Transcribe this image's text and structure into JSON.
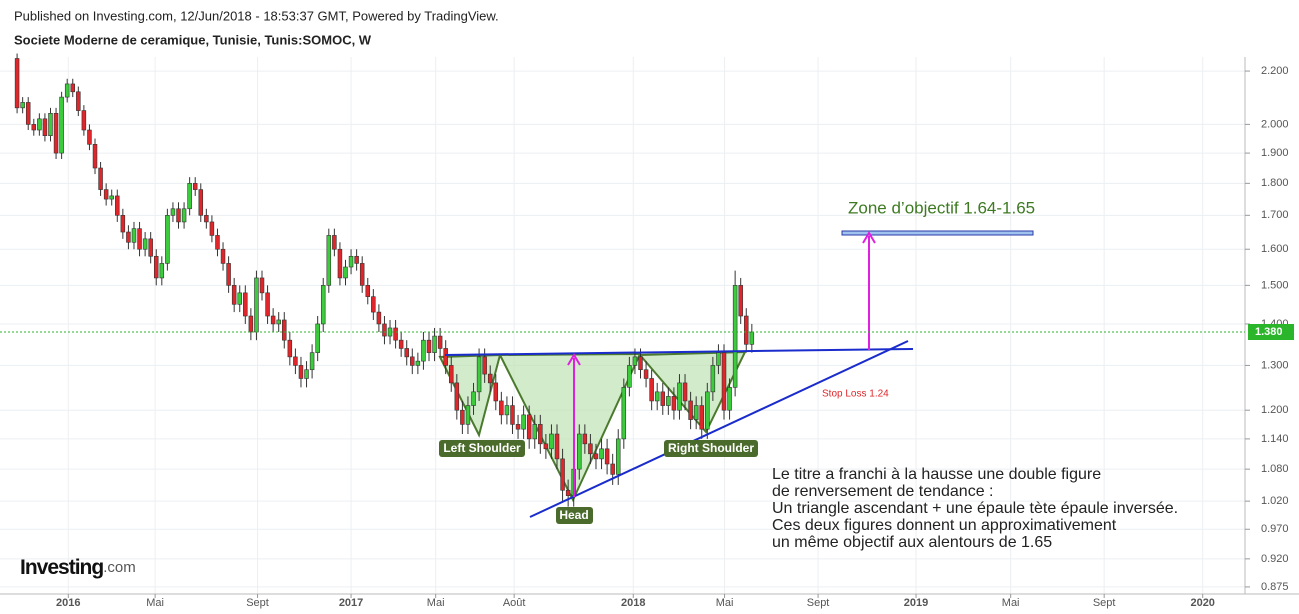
{
  "header": {
    "published": "Published on Investing.com, 12/Jun/2018 - 18:53:37 GMT, Powered by TradingView.",
    "symbol": "Societe Moderne de ceramique, Tunisie, Tunis:SOMOC, W"
  },
  "logo": {
    "name": "Investing",
    "suffix": ".com"
  },
  "chart_data": {
    "type": "candlestick",
    "log_scale": true,
    "grid": true,
    "up_color": "#3ccb3c",
    "down_color": "#e0262a",
    "open": [
      2.25,
      2.06,
      2.08,
      2.0,
      1.98,
      2.02,
      1.96,
      2.04,
      1.9,
      2.1,
      2.15,
      2.12,
      2.05,
      1.98,
      1.93,
      1.85,
      1.78,
      1.75,
      1.76,
      1.7,
      1.65,
      1.62,
      1.66,
      1.6,
      1.63,
      1.58,
      1.52,
      1.56,
      1.7,
      1.72,
      1.68,
      1.72,
      1.8,
      1.78,
      1.7,
      1.68,
      1.64,
      1.6,
      1.56,
      1.5,
      1.45,
      1.48,
      1.42,
      1.38,
      1.52,
      1.48,
      1.42,
      1.4,
      1.41,
      1.36,
      1.32,
      1.3,
      1.27,
      1.29,
      1.33,
      1.4,
      1.5,
      1.64,
      1.6,
      1.52,
      1.55,
      1.58,
      1.56,
      1.5,
      1.47,
      1.43,
      1.4,
      1.37,
      1.39,
      1.36,
      1.34,
      1.32,
      1.3,
      1.31,
      1.36,
      1.33,
      1.37,
      1.34,
      1.3,
      1.26,
      1.2,
      1.17,
      1.21,
      1.24,
      1.32,
      1.28,
      1.26,
      1.22,
      1.19,
      1.21,
      1.17,
      1.16,
      1.19,
      1.14,
      1.17,
      1.13,
      1.12,
      1.15,
      1.1,
      1.04,
      1.03,
      1.08,
      1.15,
      1.13,
      1.11,
      1.1,
      1.12,
      1.09,
      1.07,
      1.14,
      1.25,
      1.3,
      1.32,
      1.29,
      1.27,
      1.22,
      1.24,
      1.21,
      1.23,
      1.2,
      1.26,
      1.22,
      1.18,
      1.21,
      1.16,
      1.24,
      1.3,
      1.33,
      1.2,
      1.25,
      1.5,
      1.42,
      1.35
    ],
    "high": [
      2.27,
      2.1,
      2.1,
      2.02,
      2.04,
      2.04,
      2.06,
      2.06,
      2.12,
      2.17,
      2.17,
      2.14,
      2.07,
      2.0,
      1.95,
      1.87,
      1.8,
      1.78,
      1.78,
      1.72,
      1.67,
      1.68,
      1.68,
      1.65,
      1.65,
      1.6,
      1.58,
      1.72,
      1.74,
      1.74,
      1.74,
      1.82,
      1.82,
      1.8,
      1.72,
      1.7,
      1.66,
      1.62,
      1.58,
      1.52,
      1.5,
      1.5,
      1.44,
      1.54,
      1.54,
      1.5,
      1.44,
      1.43,
      1.43,
      1.38,
      1.34,
      1.32,
      1.31,
      1.35,
      1.42,
      1.52,
      1.66,
      1.66,
      1.62,
      1.57,
      1.6,
      1.6,
      1.58,
      1.52,
      1.49,
      1.45,
      1.42,
      1.41,
      1.41,
      1.38,
      1.36,
      1.34,
      1.33,
      1.38,
      1.38,
      1.39,
      1.39,
      1.36,
      1.32,
      1.28,
      1.22,
      1.23,
      1.26,
      1.34,
      1.34,
      1.3,
      1.28,
      1.24,
      1.23,
      1.23,
      1.19,
      1.21,
      1.21,
      1.19,
      1.19,
      1.15,
      1.17,
      1.17,
      1.12,
      1.06,
      1.1,
      1.17,
      1.17,
      1.15,
      1.13,
      1.14,
      1.14,
      1.11,
      1.16,
      1.27,
      1.32,
      1.34,
      1.34,
      1.31,
      1.29,
      1.26,
      1.26,
      1.25,
      1.25,
      1.28,
      1.28,
      1.24,
      1.23,
      1.23,
      1.26,
      1.32,
      1.35,
      1.35,
      1.27,
      1.54,
      1.52,
      1.44,
      1.4
    ],
    "low": [
      2.04,
      2.04,
      1.98,
      1.96,
      1.96,
      1.94,
      1.94,
      1.88,
      1.88,
      2.08,
      2.1,
      2.03,
      1.96,
      1.91,
      1.83,
      1.76,
      1.73,
      1.73,
      1.68,
      1.63,
      1.6,
      1.6,
      1.58,
      1.58,
      1.56,
      1.5,
      1.5,
      1.54,
      1.68,
      1.66,
      1.66,
      1.7,
      1.76,
      1.68,
      1.66,
      1.62,
      1.58,
      1.54,
      1.48,
      1.43,
      1.43,
      1.4,
      1.36,
      1.36,
      1.46,
      1.4,
      1.38,
      1.38,
      1.34,
      1.3,
      1.28,
      1.25,
      1.25,
      1.27,
      1.31,
      1.38,
      1.48,
      1.58,
      1.5,
      1.5,
      1.53,
      1.54,
      1.48,
      1.45,
      1.41,
      1.38,
      1.35,
      1.35,
      1.34,
      1.32,
      1.3,
      1.28,
      1.28,
      1.29,
      1.31,
      1.31,
      1.32,
      1.28,
      1.24,
      1.18,
      1.15,
      1.15,
      1.19,
      1.22,
      1.26,
      1.24,
      1.2,
      1.17,
      1.17,
      1.15,
      1.14,
      1.14,
      1.12,
      1.12,
      1.11,
      1.1,
      1.1,
      1.08,
      1.02,
      1.01,
      1.01,
      1.06,
      1.11,
      1.09,
      1.08,
      1.08,
      1.07,
      1.05,
      1.05,
      1.12,
      1.23,
      1.28,
      1.27,
      1.25,
      1.2,
      1.2,
      1.19,
      1.19,
      1.18,
      1.18,
      1.2,
      1.16,
      1.16,
      1.14,
      1.14,
      1.22,
      1.28,
      1.18,
      1.18,
      1.23,
      1.4,
      1.33,
      1.33
    ],
    "close": [
      2.06,
      2.08,
      2.0,
      1.98,
      2.02,
      1.96,
      2.04,
      1.9,
      2.1,
      2.15,
      2.12,
      2.05,
      1.98,
      1.93,
      1.85,
      1.78,
      1.75,
      1.76,
      1.7,
      1.65,
      1.62,
      1.66,
      1.6,
      1.63,
      1.58,
      1.52,
      1.56,
      1.7,
      1.72,
      1.68,
      1.72,
      1.8,
      1.78,
      1.7,
      1.68,
      1.64,
      1.6,
      1.56,
      1.5,
      1.45,
      1.48,
      1.42,
      1.38,
      1.52,
      1.48,
      1.42,
      1.4,
      1.41,
      1.36,
      1.32,
      1.3,
      1.27,
      1.29,
      1.33,
      1.4,
      1.5,
      1.64,
      1.6,
      1.52,
      1.55,
      1.58,
      1.56,
      1.5,
      1.47,
      1.43,
      1.4,
      1.37,
      1.39,
      1.36,
      1.34,
      1.32,
      1.3,
      1.31,
      1.36,
      1.33,
      1.37,
      1.34,
      1.3,
      1.26,
      1.2,
      1.17,
      1.21,
      1.24,
      1.32,
      1.28,
      1.26,
      1.22,
      1.19,
      1.21,
      1.17,
      1.16,
      1.19,
      1.14,
      1.17,
      1.13,
      1.12,
      1.15,
      1.1,
      1.04,
      1.03,
      1.08,
      1.15,
      1.13,
      1.11,
      1.1,
      1.12,
      1.09,
      1.07,
      1.14,
      1.25,
      1.3,
      1.32,
      1.29,
      1.27,
      1.22,
      1.24,
      1.21,
      1.23,
      1.2,
      1.26,
      1.22,
      1.18,
      1.21,
      1.16,
      1.24,
      1.3,
      1.33,
      1.2,
      1.25,
      1.5,
      1.42,
      1.35,
      1.38
    ],
    "ylim": [
      0.864,
      2.256
    ],
    "yticks": [
      {
        "value": 2.2,
        "label": "2.200"
      },
      {
        "value": 2.0,
        "label": "2.000"
      },
      {
        "value": 1.9,
        "label": "1.900"
      },
      {
        "value": 1.8,
        "label": "1.800"
      },
      {
        "value": 1.7,
        "label": "1.700"
      },
      {
        "value": 1.6,
        "label": "1.600"
      },
      {
        "value": 1.5,
        "label": "1.500"
      },
      {
        "value": 1.4,
        "label": "1.400"
      },
      {
        "value": 1.3,
        "label": "1.300"
      },
      {
        "value": 1.2,
        "label": "1.200"
      },
      {
        "value": 1.14,
        "label": "1.140"
      },
      {
        "value": 1.08,
        "label": "1.080"
      },
      {
        "value": 1.02,
        "label": "1.020"
      },
      {
        "value": 0.97,
        "label": "0.970"
      },
      {
        "value": 0.92,
        "label": "0.920"
      },
      {
        "value": 0.875,
        "label": "0.875"
      }
    ],
    "xlim": [
      -3.07,
      220.6
    ],
    "xticks": [
      {
        "value": 9.2,
        "label": "2016"
      },
      {
        "value": 24.8,
        "label": "Mai"
      },
      {
        "value": 43.2,
        "label": "Sept"
      },
      {
        "value": 60.0,
        "label": "2017"
      },
      {
        "value": 75.2,
        "label": "Mai"
      },
      {
        "value": 89.3,
        "label": "Août"
      },
      {
        "value": 110.7,
        "label": "2018"
      },
      {
        "value": 127.1,
        "label": "Mai"
      },
      {
        "value": 143.9,
        "label": "Sept"
      },
      {
        "value": 161.5,
        "label": "2019"
      },
      {
        "value": 178.5,
        "label": "Mai"
      },
      {
        "value": 195.3,
        "label": "Sept"
      },
      {
        "value": 213.0,
        "label": "2020"
      }
    ],
    "last_price": {
      "value": 1.38,
      "label": "1.380"
    },
    "annotations": {
      "target": "Zone d’objectif 1.64-1.65",
      "stop_loss": "Stop Loss 1.24",
      "left_shoulder": "Left Shoulder",
      "head": "Head",
      "right_shoulder": "Right Shoulder",
      "comment": [
        "Le titre a franchi à la hausse une double figure",
        "de renversement de tendance :",
        "Un triangle ascendant + une épaule tète épaule inversée.",
        "Ces deux figures donnent un approximativement",
        "un même objectif aux alentours de 1.65"
      ]
    }
  }
}
